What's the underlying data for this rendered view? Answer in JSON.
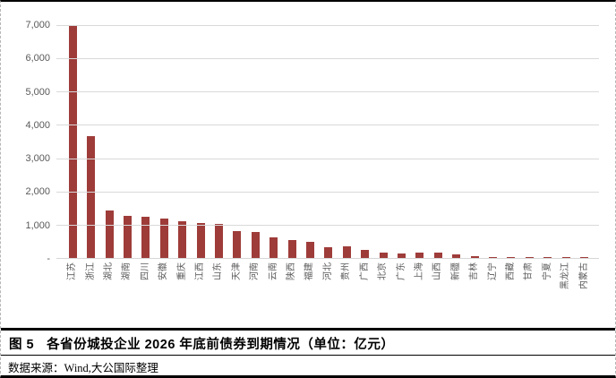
{
  "chart_data": {
    "type": "bar",
    "title": "各省份城投企业2026年底前债券到期情况",
    "unit": "亿元",
    "categories": [
      "江苏",
      "浙江",
      "湖北",
      "湖南",
      "四川",
      "安徽",
      "重庆",
      "江西",
      "山东",
      "天津",
      "河南",
      "云南",
      "陕西",
      "福建",
      "河北",
      "贵州",
      "广西",
      "北京",
      "广东",
      "上海",
      "山西",
      "新疆",
      "吉林",
      "辽宁",
      "西藏",
      "甘肃",
      "宁夏",
      "黑龙江",
      "内蒙古"
    ],
    "values": [
      6980,
      3660,
      1420,
      1270,
      1230,
      1170,
      1110,
      1050,
      1020,
      810,
      780,
      620,
      550,
      480,
      335,
      340,
      255,
      150,
      145,
      170,
      150,
      120,
      60,
      35,
      35,
      10,
      30,
      20,
      25
    ],
    "xlabel": "",
    "ylabel": "",
    "ylim": [
      0,
      7000
    ],
    "yticks": [
      {
        "value": 7000,
        "label": "7,000"
      },
      {
        "value": 6000,
        "label": "6,000"
      },
      {
        "value": 5000,
        "label": "5,000"
      },
      {
        "value": 4000,
        "label": "4,000"
      },
      {
        "value": 3000,
        "label": "3,000"
      },
      {
        "value": 2000,
        "label": "2,000"
      },
      {
        "value": 1000,
        "label": "1,000"
      },
      {
        "value": 0,
        "label": "-"
      }
    ],
    "grid": true,
    "legend_position": "none",
    "bar_color": "#9e3c39",
    "gridline_color": "#d9d9d9",
    "axis_label_color": "#595959"
  },
  "footer": {
    "figure_label": "图 5",
    "title": "各省份城投企业 2026 年底前债券到期情况（单位：亿元）",
    "source_prefix": "数据来源：",
    "source_latin": "Wind,",
    "source_suffix": "大公国际整理"
  }
}
